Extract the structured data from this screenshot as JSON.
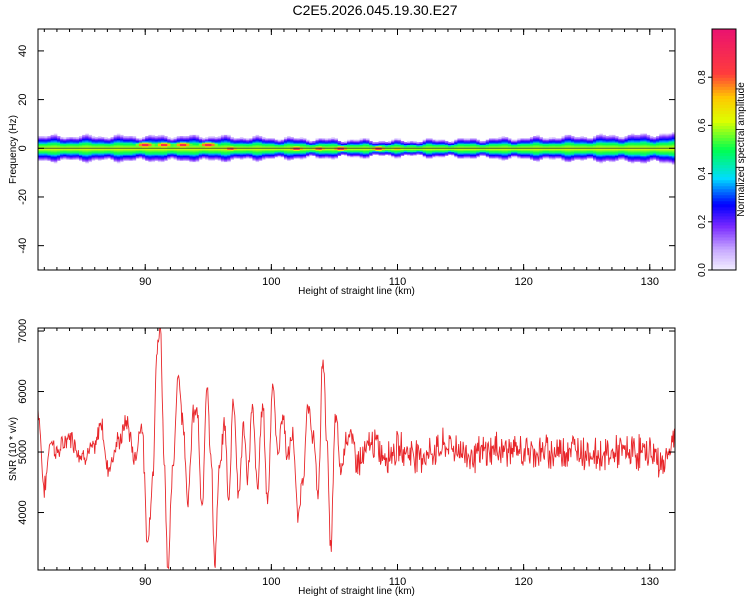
{
  "title": "C2E5.2026.045.19.30.E27",
  "chart_data": [
    {
      "type": "heatmap",
      "xlabel": "Height of straight line (km)",
      "ylabel": "Frequency (Hz)",
      "xlim": [
        81.5,
        132
      ],
      "ylim": [
        -50,
        49
      ],
      "xticks": [
        90,
        100,
        110,
        120,
        130
      ],
      "yticks": [
        -40,
        -20,
        0,
        20,
        40
      ],
      "colorbar": {
        "label": "Normalized spectral amplitude",
        "range": [
          0,
          1
        ],
        "ticks": [
          0.0,
          0.2,
          0.4,
          0.6,
          0.8
        ]
      },
      "ridge_center_hz": 0,
      "band_halfwidth_hz": [
        {
          "x": 82,
          "hz": 5
        },
        {
          "x": 95,
          "hz": 5
        },
        {
          "x": 110,
          "hz": 3
        },
        {
          "x": 125,
          "hz": 5
        },
        {
          "x": 132,
          "hz": 6
        }
      ],
      "hotspots": [
        {
          "x": 90.0,
          "hz": 1.5,
          "amp": 0.95
        },
        {
          "x": 91.5,
          "hz": 1.5,
          "amp": 0.9
        },
        {
          "x": 93.0,
          "hz": 1.5,
          "amp": 0.92
        },
        {
          "x": 95.0,
          "hz": 1.5,
          "amp": 0.95
        },
        {
          "x": 96.8,
          "hz": 0.0,
          "amp": 0.85
        },
        {
          "x": 102.0,
          "hz": 0.0,
          "amp": 0.9
        },
        {
          "x": 103.8,
          "hz": 0.0,
          "amp": 0.85
        },
        {
          "x": 105.5,
          "hz": 0.0,
          "amp": 0.92
        },
        {
          "x": 108.5,
          "hz": 0.0,
          "amp": 0.9
        },
        {
          "x": 110.0,
          "hz": 0.0,
          "amp": 0.75
        }
      ]
    },
    {
      "type": "line",
      "xlabel": "Height of straight line (km)",
      "ylabel": "SNR (10 * v/v)",
      "xlim": [
        81.5,
        132
      ],
      "ylim": [
        3050,
        7050
      ],
      "xticks": [
        90,
        100,
        110,
        120,
        130
      ],
      "yticks": [
        4000,
        5000,
        6000,
        7000
      ],
      "series": [
        {
          "color": "#e8262a",
          "x": [
            81.5,
            82.0,
            82.5,
            83.0,
            84.0,
            85.0,
            86.0,
            86.5,
            87.0,
            88.0,
            88.5,
            89.2,
            89.7,
            90.2,
            90.6,
            90.9,
            91.2,
            91.5,
            91.8,
            92.2,
            92.6,
            93.0,
            93.4,
            93.8,
            94.1,
            94.5,
            94.9,
            95.2,
            95.5,
            95.9,
            96.3,
            96.6,
            97.0,
            97.4,
            97.8,
            98.1,
            98.5,
            98.9,
            99.3,
            99.7,
            100.1,
            100.5,
            100.9,
            101.3,
            101.7,
            102.1,
            102.5,
            102.9,
            103.3,
            103.7,
            104.1,
            104.4,
            104.7,
            105.1,
            105.5,
            106.0,
            107.0,
            108.0,
            109.0,
            110.0,
            112.0,
            114.0,
            116.0,
            118.0,
            120.0,
            122.0,
            124.0,
            126.0,
            128.0,
            130.0,
            131.0,
            132.0
          ],
          "y": [
            5700,
            4400,
            5200,
            5000,
            5250,
            4950,
            5050,
            5500,
            4750,
            5200,
            5500,
            4900,
            5500,
            3500,
            4600,
            6600,
            7050,
            4900,
            3100,
            4700,
            6300,
            5500,
            4200,
            5600,
            5700,
            4000,
            6200,
            5000,
            3200,
            4700,
            5500,
            4200,
            5900,
            4300,
            5400,
            4600,
            5700,
            4400,
            5800,
            4200,
            6100,
            5000,
            5600,
            4900,
            5300,
            3900,
            4600,
            5700,
            5300,
            4300,
            6600,
            5200,
            3400,
            5600,
            4700,
            5300,
            4850,
            5150,
            4950,
            5050,
            4950,
            5100,
            4950,
            5050,
            5000,
            5000,
            5050,
            4950,
            5000,
            5000,
            4800,
            5200
          ]
        }
      ]
    }
  ]
}
